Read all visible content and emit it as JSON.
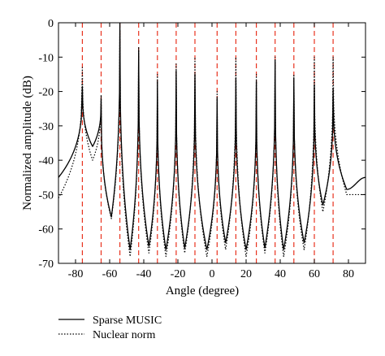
{
  "chart_data": {
    "type": "line",
    "xlabel": "Angle (degree)",
    "ylabel": "Normalized amplitude (dB)",
    "xlim": [
      -90,
      90
    ],
    "ylim": [
      -70,
      0
    ],
    "xticks": [
      -80,
      -60,
      -40,
      -20,
      0,
      20,
      40,
      60,
      80
    ],
    "yticks": [
      0,
      -10,
      -20,
      -30,
      -40,
      -50,
      -60,
      -70
    ],
    "grid": false,
    "legend_placement": "below-left",
    "true_angles": [
      -76,
      -65,
      -54,
      -43,
      -32,
      -21,
      -10,
      3,
      14,
      26,
      37,
      48,
      60,
      71
    ],
    "reference_line_color": "#e8321e",
    "series": [
      {
        "name": "Sparse MUSIC",
        "style": "solid",
        "color": "#000000",
        "peaks": [
          {
            "x": -76,
            "y": -18.5
          },
          {
            "x": -65,
            "y": -22
          },
          {
            "x": -54,
            "y": 0
          },
          {
            "x": -43,
            "y": -8
          },
          {
            "x": -32,
            "y": -17
          },
          {
            "x": -21,
            "y": -14
          },
          {
            "x": -10,
            "y": -15
          },
          {
            "x": 3,
            "y": -22
          },
          {
            "x": 14,
            "y": -16
          },
          {
            "x": 26,
            "y": -17
          },
          {
            "x": 37,
            "y": -11
          },
          {
            "x": 48,
            "y": -16
          },
          {
            "x": 60,
            "y": -18
          },
          {
            "x": 71,
            "y": -19
          }
        ],
        "valleys": [
          {
            "x": -90,
            "y": -45
          },
          {
            "x": -70,
            "y": -36
          },
          {
            "x": -59,
            "y": -56.5
          },
          {
            "x": -48,
            "y": -66
          },
          {
            "x": -37,
            "y": -65
          },
          {
            "x": -27,
            "y": -66
          },
          {
            "x": -16,
            "y": -65.5
          },
          {
            "x": -3,
            "y": -66
          },
          {
            "x": 8,
            "y": -64
          },
          {
            "x": 20,
            "y": -66
          },
          {
            "x": 31,
            "y": -65.5
          },
          {
            "x": 42,
            "y": -66
          },
          {
            "x": 54,
            "y": -64
          },
          {
            "x": 65,
            "y": -53
          },
          {
            "x": 79,
            "y": -48.5
          },
          {
            "x": 90,
            "y": -45
          }
        ]
      },
      {
        "name": "Nuclear norm",
        "style": "dotted",
        "color": "#000000",
        "peaks": [
          {
            "x": -76,
            "y": -13
          },
          {
            "x": -65,
            "y": -21
          },
          {
            "x": -54,
            "y": -2
          },
          {
            "x": -43,
            "y": -7
          },
          {
            "x": -32,
            "y": -15
          },
          {
            "x": -21,
            "y": -12
          },
          {
            "x": -10,
            "y": -10
          },
          {
            "x": 3,
            "y": -20
          },
          {
            "x": 14,
            "y": -10
          },
          {
            "x": 26,
            "y": -15
          },
          {
            "x": 37,
            "y": -10
          },
          {
            "x": 48,
            "y": -15
          },
          {
            "x": 60,
            "y": -10
          },
          {
            "x": 71,
            "y": -10
          }
        ],
        "valleys": [
          {
            "x": -90,
            "y": -51
          },
          {
            "x": -70,
            "y": -40
          },
          {
            "x": -59,
            "y": -57
          },
          {
            "x": -48,
            "y": -68
          },
          {
            "x": -37,
            "y": -67
          },
          {
            "x": -27,
            "y": -68
          },
          {
            "x": -16,
            "y": -67
          },
          {
            "x": -3,
            "y": -68
          },
          {
            "x": 8,
            "y": -66
          },
          {
            "x": 20,
            "y": -68
          },
          {
            "x": 31,
            "y": -67
          },
          {
            "x": 42,
            "y": -68
          },
          {
            "x": 54,
            "y": -66
          },
          {
            "x": 65,
            "y": -55
          },
          {
            "x": 79,
            "y": -50
          },
          {
            "x": 90,
            "y": -50
          }
        ]
      }
    ]
  },
  "legend": {
    "items": [
      {
        "label": "Sparse MUSIC",
        "style": "solid"
      },
      {
        "label": "Nuclear norm",
        "style": "dotted"
      }
    ]
  }
}
